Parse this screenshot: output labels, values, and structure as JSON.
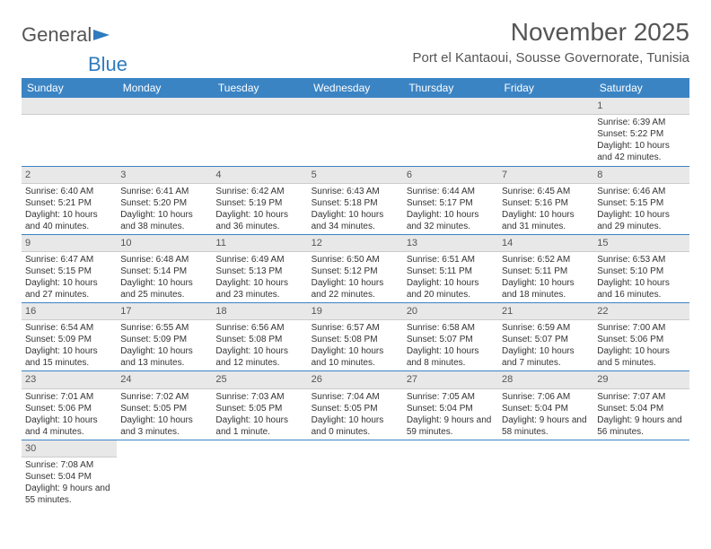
{
  "brand": {
    "part1": "General",
    "part2": "Blue"
  },
  "title": "November 2025",
  "location": "Port el Kantaoui, Sousse Governorate, Tunisia",
  "colors": {
    "header_bg": "#3b84c4",
    "header_text": "#ffffff",
    "daynum_bg": "#e8e8e8",
    "cell_border": "#3b84c4",
    "text": "#333333",
    "brand_gray": "#555555",
    "brand_blue": "#2f7bbf"
  },
  "typography": {
    "title_fontsize": 28,
    "location_fontsize": 15,
    "header_fontsize": 12,
    "body_fontsize": 10
  },
  "dayHeaders": [
    "Sunday",
    "Monday",
    "Tuesday",
    "Wednesday",
    "Thursday",
    "Friday",
    "Saturday"
  ],
  "weeks": [
    [
      null,
      null,
      null,
      null,
      null,
      null,
      {
        "n": "1",
        "sr": "Sunrise: 6:39 AM",
        "ss": "Sunset: 5:22 PM",
        "dl": "Daylight: 10 hours and 42 minutes."
      }
    ],
    [
      {
        "n": "2",
        "sr": "Sunrise: 6:40 AM",
        "ss": "Sunset: 5:21 PM",
        "dl": "Daylight: 10 hours and 40 minutes."
      },
      {
        "n": "3",
        "sr": "Sunrise: 6:41 AM",
        "ss": "Sunset: 5:20 PM",
        "dl": "Daylight: 10 hours and 38 minutes."
      },
      {
        "n": "4",
        "sr": "Sunrise: 6:42 AM",
        "ss": "Sunset: 5:19 PM",
        "dl": "Daylight: 10 hours and 36 minutes."
      },
      {
        "n": "5",
        "sr": "Sunrise: 6:43 AM",
        "ss": "Sunset: 5:18 PM",
        "dl": "Daylight: 10 hours and 34 minutes."
      },
      {
        "n": "6",
        "sr": "Sunrise: 6:44 AM",
        "ss": "Sunset: 5:17 PM",
        "dl": "Daylight: 10 hours and 32 minutes."
      },
      {
        "n": "7",
        "sr": "Sunrise: 6:45 AM",
        "ss": "Sunset: 5:16 PM",
        "dl": "Daylight: 10 hours and 31 minutes."
      },
      {
        "n": "8",
        "sr": "Sunrise: 6:46 AM",
        "ss": "Sunset: 5:15 PM",
        "dl": "Daylight: 10 hours and 29 minutes."
      }
    ],
    [
      {
        "n": "9",
        "sr": "Sunrise: 6:47 AM",
        "ss": "Sunset: 5:15 PM",
        "dl": "Daylight: 10 hours and 27 minutes."
      },
      {
        "n": "10",
        "sr": "Sunrise: 6:48 AM",
        "ss": "Sunset: 5:14 PM",
        "dl": "Daylight: 10 hours and 25 minutes."
      },
      {
        "n": "11",
        "sr": "Sunrise: 6:49 AM",
        "ss": "Sunset: 5:13 PM",
        "dl": "Daylight: 10 hours and 23 minutes."
      },
      {
        "n": "12",
        "sr": "Sunrise: 6:50 AM",
        "ss": "Sunset: 5:12 PM",
        "dl": "Daylight: 10 hours and 22 minutes."
      },
      {
        "n": "13",
        "sr": "Sunrise: 6:51 AM",
        "ss": "Sunset: 5:11 PM",
        "dl": "Daylight: 10 hours and 20 minutes."
      },
      {
        "n": "14",
        "sr": "Sunrise: 6:52 AM",
        "ss": "Sunset: 5:11 PM",
        "dl": "Daylight: 10 hours and 18 minutes."
      },
      {
        "n": "15",
        "sr": "Sunrise: 6:53 AM",
        "ss": "Sunset: 5:10 PM",
        "dl": "Daylight: 10 hours and 16 minutes."
      }
    ],
    [
      {
        "n": "16",
        "sr": "Sunrise: 6:54 AM",
        "ss": "Sunset: 5:09 PM",
        "dl": "Daylight: 10 hours and 15 minutes."
      },
      {
        "n": "17",
        "sr": "Sunrise: 6:55 AM",
        "ss": "Sunset: 5:09 PM",
        "dl": "Daylight: 10 hours and 13 minutes."
      },
      {
        "n": "18",
        "sr": "Sunrise: 6:56 AM",
        "ss": "Sunset: 5:08 PM",
        "dl": "Daylight: 10 hours and 12 minutes."
      },
      {
        "n": "19",
        "sr": "Sunrise: 6:57 AM",
        "ss": "Sunset: 5:08 PM",
        "dl": "Daylight: 10 hours and 10 minutes."
      },
      {
        "n": "20",
        "sr": "Sunrise: 6:58 AM",
        "ss": "Sunset: 5:07 PM",
        "dl": "Daylight: 10 hours and 8 minutes."
      },
      {
        "n": "21",
        "sr": "Sunrise: 6:59 AM",
        "ss": "Sunset: 5:07 PM",
        "dl": "Daylight: 10 hours and 7 minutes."
      },
      {
        "n": "22",
        "sr": "Sunrise: 7:00 AM",
        "ss": "Sunset: 5:06 PM",
        "dl": "Daylight: 10 hours and 5 minutes."
      }
    ],
    [
      {
        "n": "23",
        "sr": "Sunrise: 7:01 AM",
        "ss": "Sunset: 5:06 PM",
        "dl": "Daylight: 10 hours and 4 minutes."
      },
      {
        "n": "24",
        "sr": "Sunrise: 7:02 AM",
        "ss": "Sunset: 5:05 PM",
        "dl": "Daylight: 10 hours and 3 minutes."
      },
      {
        "n": "25",
        "sr": "Sunrise: 7:03 AM",
        "ss": "Sunset: 5:05 PM",
        "dl": "Daylight: 10 hours and 1 minute."
      },
      {
        "n": "26",
        "sr": "Sunrise: 7:04 AM",
        "ss": "Sunset: 5:05 PM",
        "dl": "Daylight: 10 hours and 0 minutes."
      },
      {
        "n": "27",
        "sr": "Sunrise: 7:05 AM",
        "ss": "Sunset: 5:04 PM",
        "dl": "Daylight: 9 hours and 59 minutes."
      },
      {
        "n": "28",
        "sr": "Sunrise: 7:06 AM",
        "ss": "Sunset: 5:04 PM",
        "dl": "Daylight: 9 hours and 58 minutes."
      },
      {
        "n": "29",
        "sr": "Sunrise: 7:07 AM",
        "ss": "Sunset: 5:04 PM",
        "dl": "Daylight: 9 hours and 56 minutes."
      }
    ],
    [
      {
        "n": "30",
        "sr": "Sunrise: 7:08 AM",
        "ss": "Sunset: 5:04 PM",
        "dl": "Daylight: 9 hours and 55 minutes."
      },
      null,
      null,
      null,
      null,
      null,
      null
    ]
  ]
}
